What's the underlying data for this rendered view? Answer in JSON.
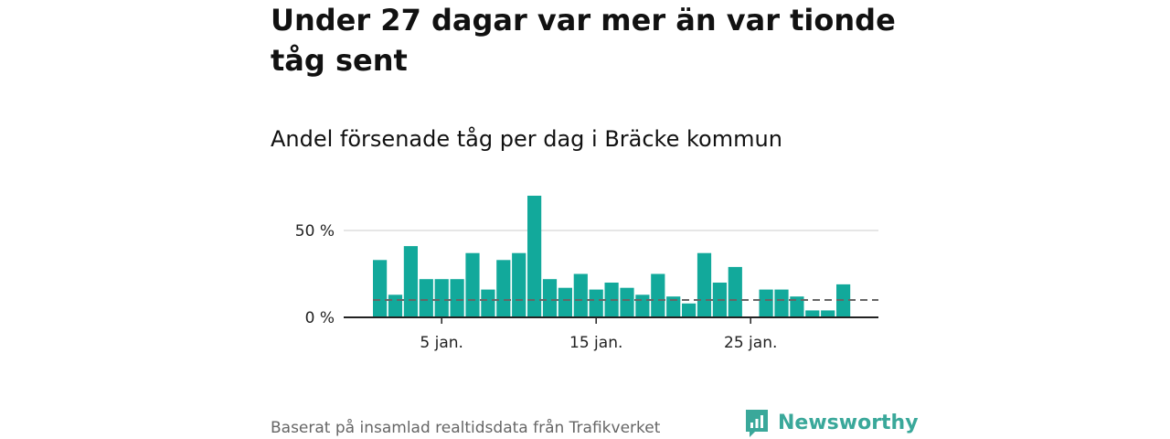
{
  "title": "Under 27 dagar var mer än var tionde tåg sent",
  "subtitle": "Andel försenade tåg per dag i Bräcke kommun",
  "footer": {
    "source": "Baserat på insamlad realtidsdata från Trafikverket",
    "brand": "Newsworthy"
  },
  "colors": {
    "bar": "#12a99b",
    "reference_line": "#666666",
    "grid": "#dddddd",
    "axis": "#222222",
    "brand": "#3aa89a"
  },
  "chart_data": {
    "type": "bar",
    "x": [
      "1 jan.",
      "2 jan.",
      "3 jan.",
      "4 jan.",
      "5 jan.",
      "6 jan.",
      "7 jan.",
      "8 jan.",
      "9 jan.",
      "10 jan.",
      "11 jan.",
      "12 jan.",
      "13 jan.",
      "14 jan.",
      "15 jan.",
      "16 jan.",
      "17 jan.",
      "18 jan.",
      "19 jan.",
      "20 jan.",
      "21 jan.",
      "22 jan.",
      "23 jan.",
      "24 jan.",
      "25 jan.",
      "26 jan.",
      "27 jan.",
      "28 jan.",
      "29 jan.",
      "30 jan.",
      "31 jan."
    ],
    "values": [
      33,
      13,
      41,
      22,
      22,
      22,
      37,
      16,
      33,
      37,
      70,
      22,
      17,
      25,
      16,
      20,
      17,
      13,
      25,
      12,
      8,
      37,
      20,
      29,
      0,
      16,
      16,
      12,
      4,
      4,
      19
    ],
    "reference_value": 10,
    "ylim": [
      0,
      70
    ],
    "yticks": [
      0,
      50
    ],
    "ytick_labels": [
      "0 %",
      "50 %"
    ],
    "xticks": [
      "5 jan.",
      "15 jan.",
      "25 jan."
    ],
    "grid": true,
    "xlabel": "",
    "ylabel": ""
  }
}
